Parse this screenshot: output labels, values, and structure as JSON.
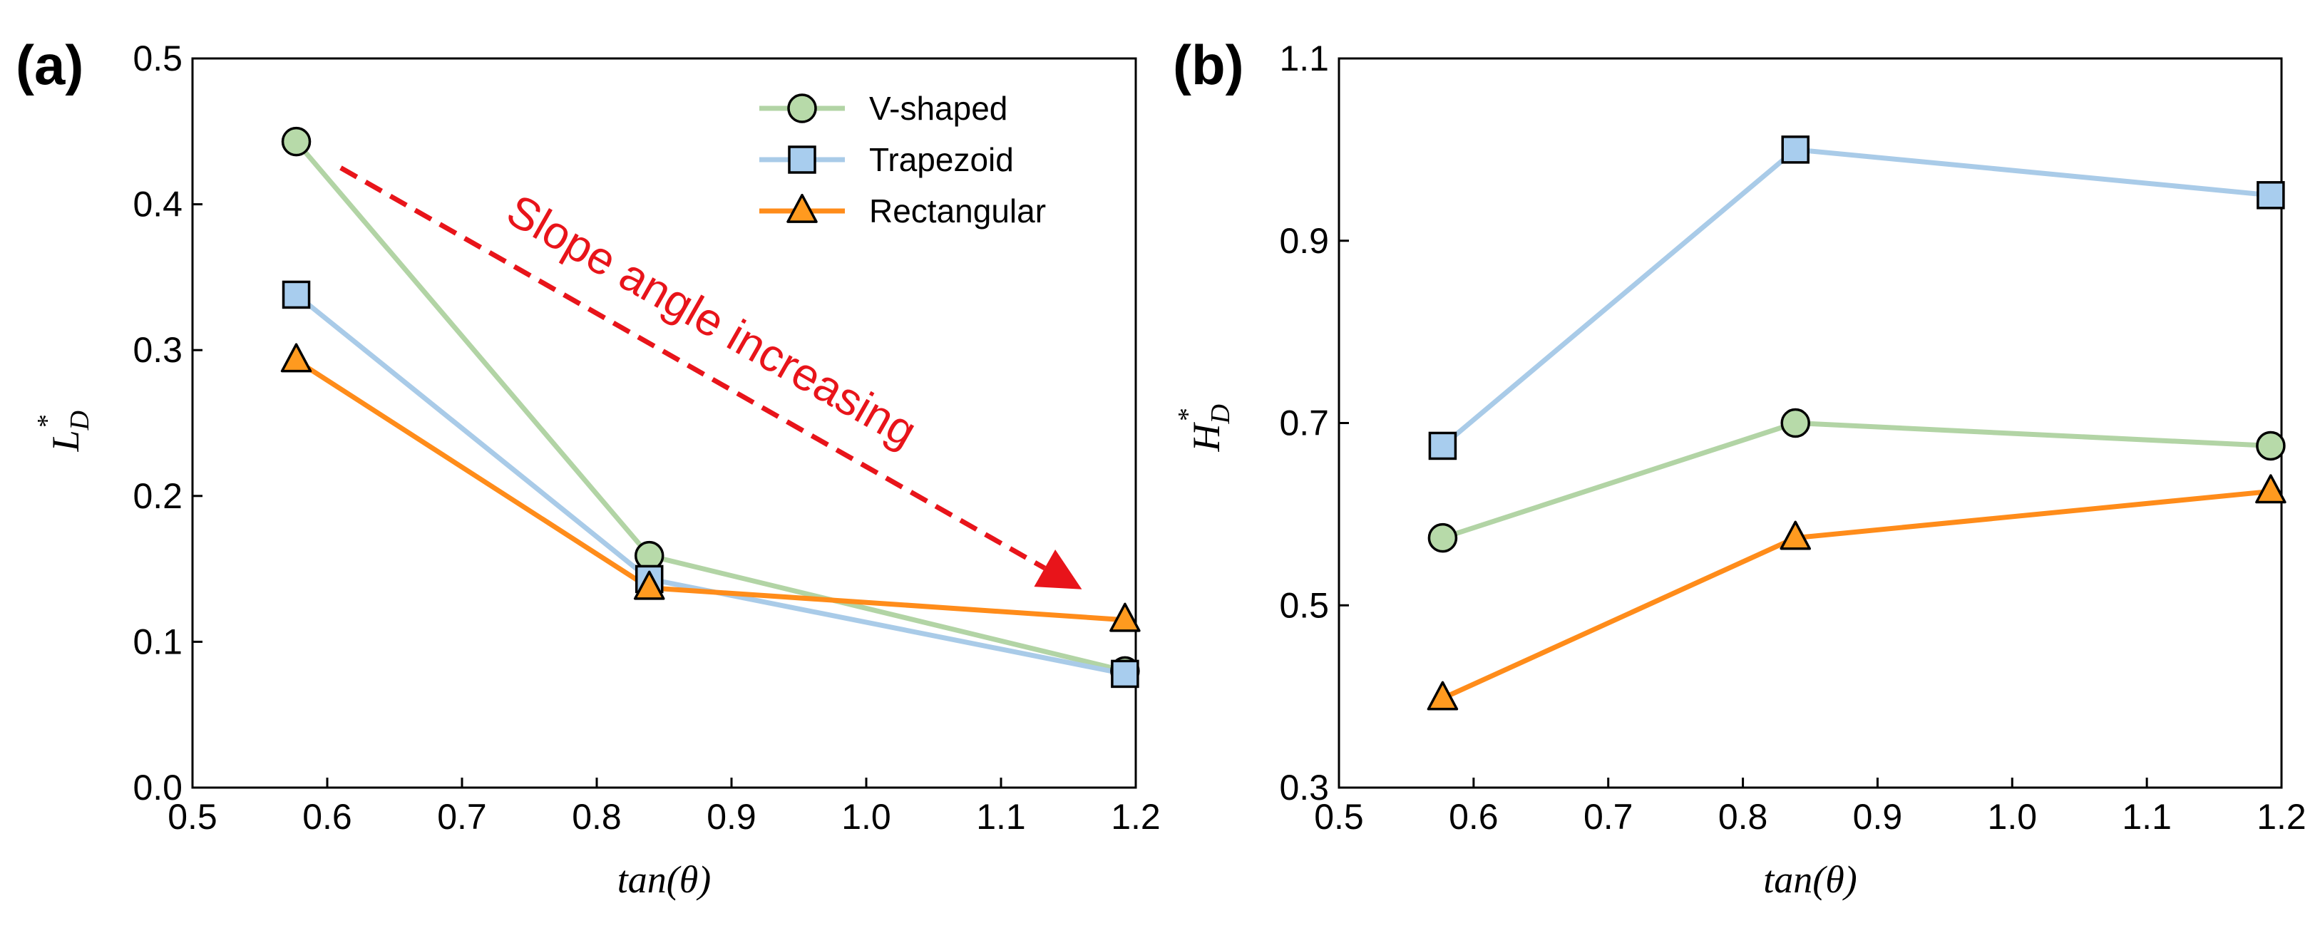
{
  "chart_data": [
    {
      "panel_label": "(a)",
      "type": "line",
      "xlabel": "tan(θ)",
      "ylabel": {
        "main": "L",
        "subscript": "D",
        "superscript": "*"
      },
      "xlim": [
        0.5,
        1.2
      ],
      "ylim": [
        0.0,
        0.5
      ],
      "xticks": [
        "0.5",
        "0.6",
        "0.7",
        "0.8",
        "0.9",
        "1.0",
        "1.1",
        "1.2"
      ],
      "yticks": [
        "0.0",
        "0.1",
        "0.2",
        "0.3",
        "0.4",
        "0.5"
      ],
      "grid": false,
      "x": [
        0.577,
        0.839,
        1.192
      ],
      "series": [
        {
          "name": "V-shaped",
          "marker": "circle",
          "line_color": "#b2d4a5",
          "marker_fill": "#b7daa9",
          "values": [
            0.443,
            0.159,
            0.08
          ]
        },
        {
          "name": "Trapezoid",
          "marker": "square",
          "line_color": "#a9cbe8",
          "marker_fill": "#a8cdee",
          "values": [
            0.338,
            0.143,
            0.078
          ]
        },
        {
          "name": "Rectangular",
          "marker": "triangle",
          "line_color": "#ff8c1a",
          "marker_fill": "#ff9a1f",
          "values": [
            0.293,
            0.137,
            0.115
          ]
        }
      ],
      "legend": {
        "position": "top-right",
        "entries": [
          "V-shaped",
          "Trapezoid",
          "Rectangular"
        ]
      },
      "annotation": {
        "text": "Slope angle increasing",
        "color": "#e8141a",
        "from": [
          0.61,
          0.425
        ],
        "to": [
          1.16,
          0.136
        ]
      }
    },
    {
      "panel_label": "(b)",
      "type": "line",
      "xlabel": "tan(θ)",
      "ylabel": {
        "main": "H",
        "subscript": "D",
        "superscript": "*"
      },
      "xlim": [
        0.5,
        1.2
      ],
      "ylim": [
        0.3,
        1.1
      ],
      "xticks": [
        "0.5",
        "0.6",
        "0.7",
        "0.8",
        "0.9",
        "1.0",
        "1.1",
        "1.2"
      ],
      "yticks": [
        "0.3",
        "0.5",
        "0.7",
        "0.9",
        "1.1"
      ],
      "grid": false,
      "x": [
        0.577,
        0.839,
        1.192
      ],
      "series": [
        {
          "name": "V-shaped",
          "marker": "circle",
          "line_color": "#b2d4a5",
          "marker_fill": "#b7daa9",
          "values": [
            0.574,
            0.7,
            0.675
          ]
        },
        {
          "name": "Trapezoid",
          "marker": "square",
          "line_color": "#a9cbe8",
          "marker_fill": "#a8cdee",
          "values": [
            0.675,
            1.0,
            0.95
          ]
        },
        {
          "name": "Rectangular",
          "marker": "triangle",
          "line_color": "#ff8c1a",
          "marker_fill": "#ff9a1f",
          "values": [
            0.398,
            0.574,
            0.625
          ]
        }
      ]
    }
  ]
}
